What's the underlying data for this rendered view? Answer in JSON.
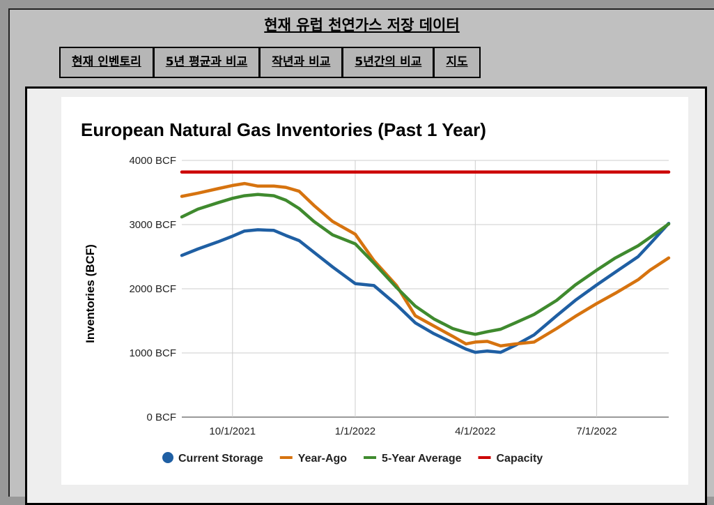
{
  "header": {
    "title": "현재 유럽 천연가스 저장 데이터"
  },
  "tabs": [
    {
      "label": "현재 인벤토리"
    },
    {
      "label": "5년 평균과 비교"
    },
    {
      "label": "작년과 비교"
    },
    {
      "label": "5년간의 비교"
    },
    {
      "label": "지도"
    }
  ],
  "chart_data": {
    "type": "line",
    "title": "European Natural Gas Inventories (Past 1 Year)",
    "ylabel": "Inventories (BCF)",
    "xlabel": "",
    "x_range": [
      "2021-08-24",
      "2022-08-24"
    ],
    "ylim": [
      0,
      4000
    ],
    "y_ticks": [
      {
        "value": 0,
        "label": "0 BCF"
      },
      {
        "value": 1000,
        "label": "1000 BCF"
      },
      {
        "value": 2000,
        "label": "2000 BCF"
      },
      {
        "value": 3000,
        "label": "3000 BCF"
      },
      {
        "value": 4000,
        "label": "4000 BCF"
      }
    ],
    "x_ticks": [
      {
        "value": "2021-10-01",
        "label": "10/1/2021"
      },
      {
        "value": "2022-01-01",
        "label": "1/1/2022"
      },
      {
        "value": "2022-04-01",
        "label": "4/1/2022"
      },
      {
        "value": "2022-07-01",
        "label": "7/1/2022"
      }
    ],
    "grid": true,
    "legend_position": "bottom",
    "series": [
      {
        "name": "Current Storage",
        "color": "#1f5fa3",
        "x": [
          "2021-08-24",
          "2021-09-05",
          "2021-09-20",
          "2021-10-01",
          "2021-10-10",
          "2021-10-20",
          "2021-11-01",
          "2021-11-10",
          "2021-11-20",
          "2021-12-01",
          "2021-12-15",
          "2022-01-01",
          "2022-01-15",
          "2022-02-01",
          "2022-02-15",
          "2022-03-01",
          "2022-03-15",
          "2022-03-25",
          "2022-04-01",
          "2022-04-10",
          "2022-04-20",
          "2022-05-01",
          "2022-05-15",
          "2022-06-01",
          "2022-06-15",
          "2022-07-01",
          "2022-07-15",
          "2022-08-01",
          "2022-08-10",
          "2022-08-24"
        ],
        "values": [
          2520,
          2620,
          2730,
          2820,
          2900,
          2920,
          2910,
          2830,
          2750,
          2570,
          2340,
          2080,
          2050,
          1750,
          1470,
          1300,
          1160,
          1060,
          1010,
          1030,
          1010,
          1120,
          1280,
          1580,
          1820,
          2060,
          2260,
          2500,
          2700,
          3020
        ]
      },
      {
        "name": "Year-Ago",
        "color": "#d6730f",
        "x": [
          "2021-08-24",
          "2021-09-05",
          "2021-09-20",
          "2021-10-01",
          "2021-10-10",
          "2021-10-20",
          "2021-11-01",
          "2021-11-10",
          "2021-11-20",
          "2021-12-01",
          "2021-12-15",
          "2022-01-01",
          "2022-01-15",
          "2022-02-01",
          "2022-02-15",
          "2022-03-01",
          "2022-03-15",
          "2022-03-25",
          "2022-04-01",
          "2022-04-10",
          "2022-04-20",
          "2022-05-01",
          "2022-05-15",
          "2022-06-01",
          "2022-06-15",
          "2022-07-01",
          "2022-07-15",
          "2022-08-01",
          "2022-08-10",
          "2022-08-24"
        ],
        "values": [
          3440,
          3490,
          3560,
          3610,
          3640,
          3600,
          3600,
          3580,
          3520,
          3300,
          3050,
          2850,
          2440,
          2050,
          1580,
          1420,
          1260,
          1140,
          1170,
          1180,
          1110,
          1140,
          1170,
          1380,
          1570,
          1770,
          1930,
          2140,
          2290,
          2480
        ]
      },
      {
        "name": "5-Year Average",
        "color": "#3f8a2e",
        "x": [
          "2021-08-24",
          "2021-09-05",
          "2021-09-20",
          "2021-10-01",
          "2021-10-10",
          "2021-10-20",
          "2021-11-01",
          "2021-11-10",
          "2021-11-20",
          "2021-12-01",
          "2021-12-15",
          "2022-01-01",
          "2022-01-15",
          "2022-02-01",
          "2022-02-15",
          "2022-03-01",
          "2022-03-15",
          "2022-03-25",
          "2022-04-01",
          "2022-04-10",
          "2022-04-20",
          "2022-05-01",
          "2022-05-15",
          "2022-06-01",
          "2022-06-15",
          "2022-07-01",
          "2022-07-15",
          "2022-08-01",
          "2022-08-10",
          "2022-08-24"
        ],
        "values": [
          3120,
          3240,
          3340,
          3410,
          3450,
          3470,
          3450,
          3380,
          3250,
          3050,
          2840,
          2700,
          2400,
          2020,
          1730,
          1530,
          1380,
          1320,
          1290,
          1330,
          1370,
          1470,
          1600,
          1820,
          2060,
          2290,
          2480,
          2670,
          2800,
          3010
        ]
      },
      {
        "name": "Capacity",
        "color": "#cc0000",
        "x": [
          "2021-08-24",
          "2022-08-24"
        ],
        "values": [
          3820,
          3820
        ]
      }
    ]
  }
}
